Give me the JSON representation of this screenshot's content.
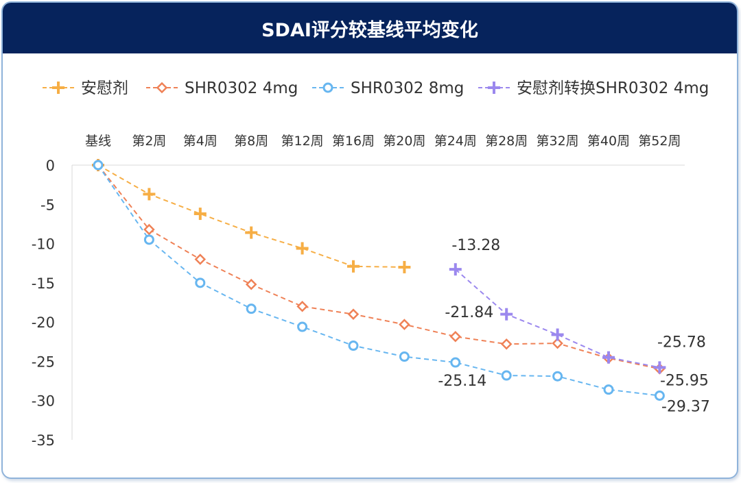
{
  "chart_data": {
    "type": "line",
    "title": "SDAI评分较基线平均变化",
    "categories": [
      "基线",
      "第2周",
      "第4周",
      "第8周",
      "第12周",
      "第16周",
      "第20周",
      "第24周",
      "第28周",
      "第32周",
      "第40周",
      "第52周"
    ],
    "ylim": [
      -35,
      0
    ],
    "yticks": [
      0,
      -5,
      -10,
      -15,
      -20,
      -25,
      -30,
      -35
    ],
    "legend_position": "top",
    "grid": false,
    "series": [
      {
        "name": "安慰剂",
        "color": "#f6ae45",
        "marker": "plus",
        "values": [
          0,
          -3.7,
          -6.2,
          -8.6,
          -10.6,
          -12.9,
          -13.0,
          null,
          null,
          null,
          null,
          null
        ]
      },
      {
        "name": "SHR0302 4mg",
        "color": "#ef8156",
        "marker": "diamond",
        "values": [
          0,
          -8.2,
          -12.0,
          -15.2,
          -18.0,
          -19.0,
          -20.3,
          -21.84,
          -22.8,
          -22.7,
          -24.6,
          -25.95
        ]
      },
      {
        "name": "SHR0302 8mg",
        "color": "#67b6f0",
        "marker": "circle",
        "values": [
          0,
          -9.5,
          -15.0,
          -18.3,
          -20.6,
          -23.0,
          -24.4,
          -25.14,
          -26.8,
          -26.9,
          -28.6,
          -29.37
        ]
      },
      {
        "name": "安慰剂转换SHR0302 4mg",
        "color": "#9b88ee",
        "marker": "plus",
        "values": [
          null,
          null,
          null,
          null,
          null,
          null,
          null,
          -13.28,
          -19.0,
          -21.6,
          -24.5,
          -25.78
        ]
      }
    ],
    "annotations": [
      {
        "text": "-13.28",
        "category": "第24周",
        "value": -13.28,
        "dx": 30,
        "dy": -28
      },
      {
        "text": "-21.84",
        "category": "第24周",
        "value": -21.84,
        "dx": 20,
        "dy": -28
      },
      {
        "text": "-25.14",
        "category": "第24周",
        "value": -25.14,
        "dx": 10,
        "dy": 34
      },
      {
        "text": "-25.78",
        "category": "第52周",
        "value": -25.78,
        "dx": 32,
        "dy": -30
      },
      {
        "text": "-25.95",
        "category": "第52周",
        "value": -25.95,
        "dx": 36,
        "dy": 24
      },
      {
        "text": "-29.37",
        "category": "第52周",
        "value": -29.37,
        "dx": 38,
        "dy": 23
      }
    ]
  }
}
